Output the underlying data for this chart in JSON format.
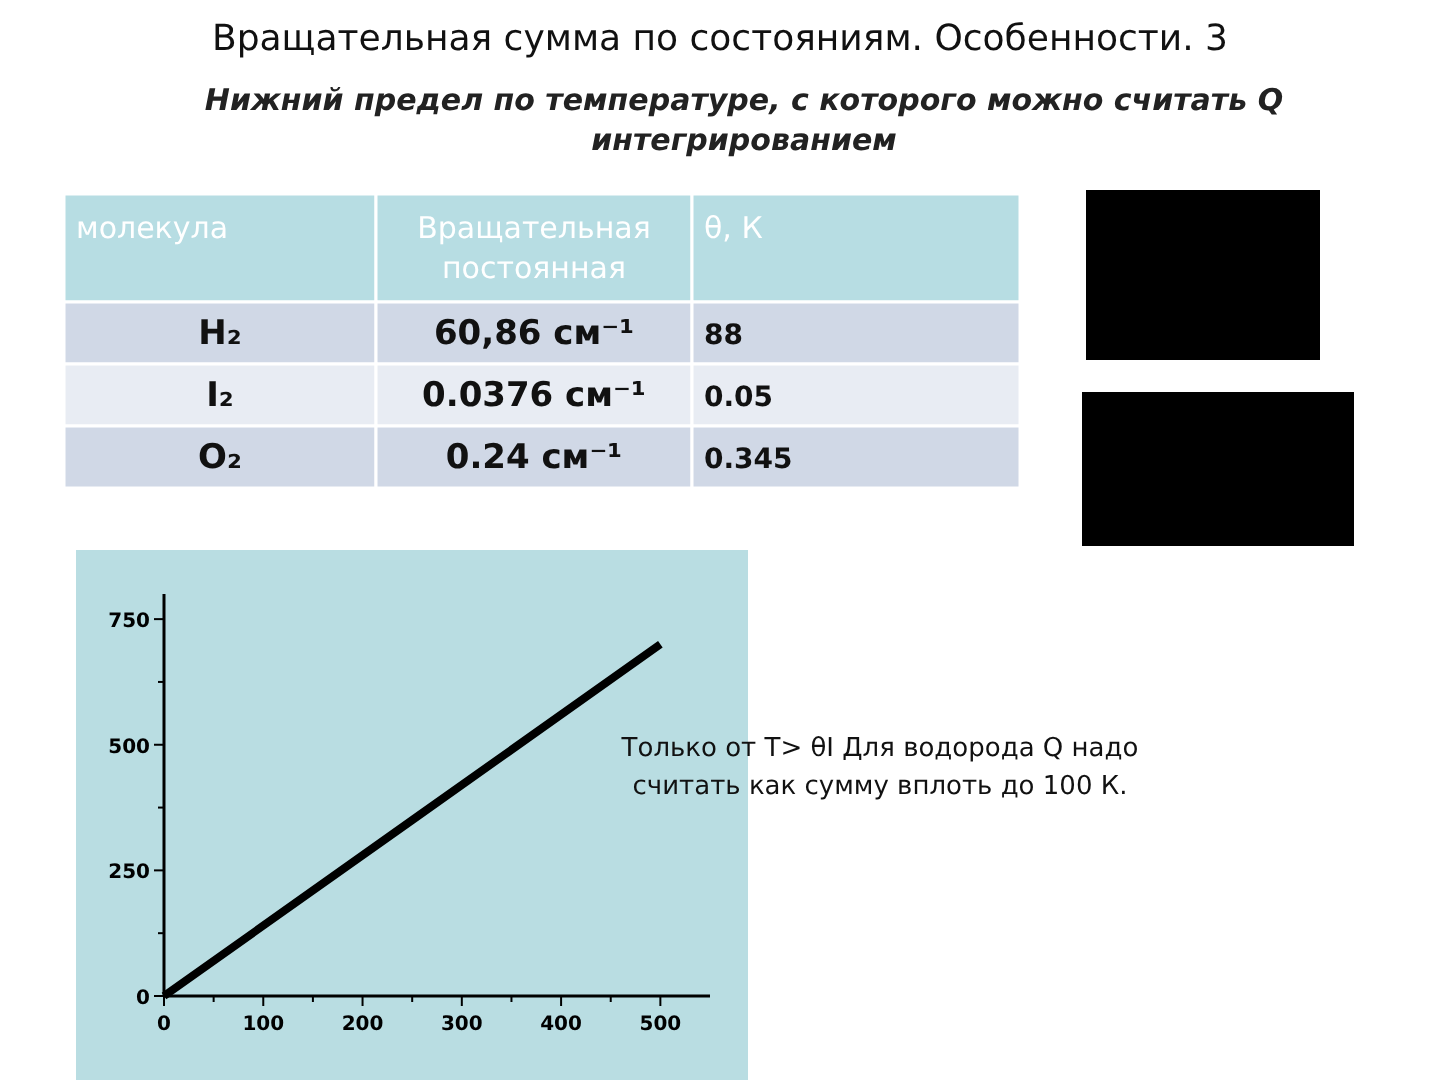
{
  "chart_data": {
    "type": "line",
    "title": "Вращательная сумма по состояниям. Особенности. 3",
    "subtitle": "Нижний предел по температуре, с которого можно считать Q интегрированием",
    "x": [
      0,
      250,
      500
    ],
    "series": [
      {
        "color": "#000000",
        "values": [
          0,
          350,
          700
        ]
      }
    ],
    "xlim": [
      0,
      550
    ],
    "ylim": [
      0,
      800
    ],
    "xticks": [
      0,
      {
        "value": 50,
        "label": null
      },
      100,
      {
        "value": 150,
        "label": null
      },
      200,
      {
        "value": 250,
        "label": null
      },
      300,
      {
        "value": 350,
        "label": null
      },
      400,
      {
        "value": 450,
        "label": null
      },
      500
    ],
    "yticks": [
      0,
      {
        "value": 125,
        "label": null
      },
      250,
      {
        "value": 375,
        "label": null
      },
      500,
      {
        "value": 625,
        "label": null
      },
      750
    ],
    "grid": false,
    "marker": "none",
    "line_style": "solid",
    "annotations": [
      "молекула",
      "Вращательная постоянная",
      "θ, К",
      "H₂",
      "60,86 см⁻¹",
      "88",
      "I₂",
      "0.0376 см⁻¹",
      "0.05",
      "O₂",
      "0.24 см⁻¹",
      "0.345",
      "Только от T> θI  Для водорода  Q надо считать как сумму вплоть до 100 К."
    ]
  }
}
